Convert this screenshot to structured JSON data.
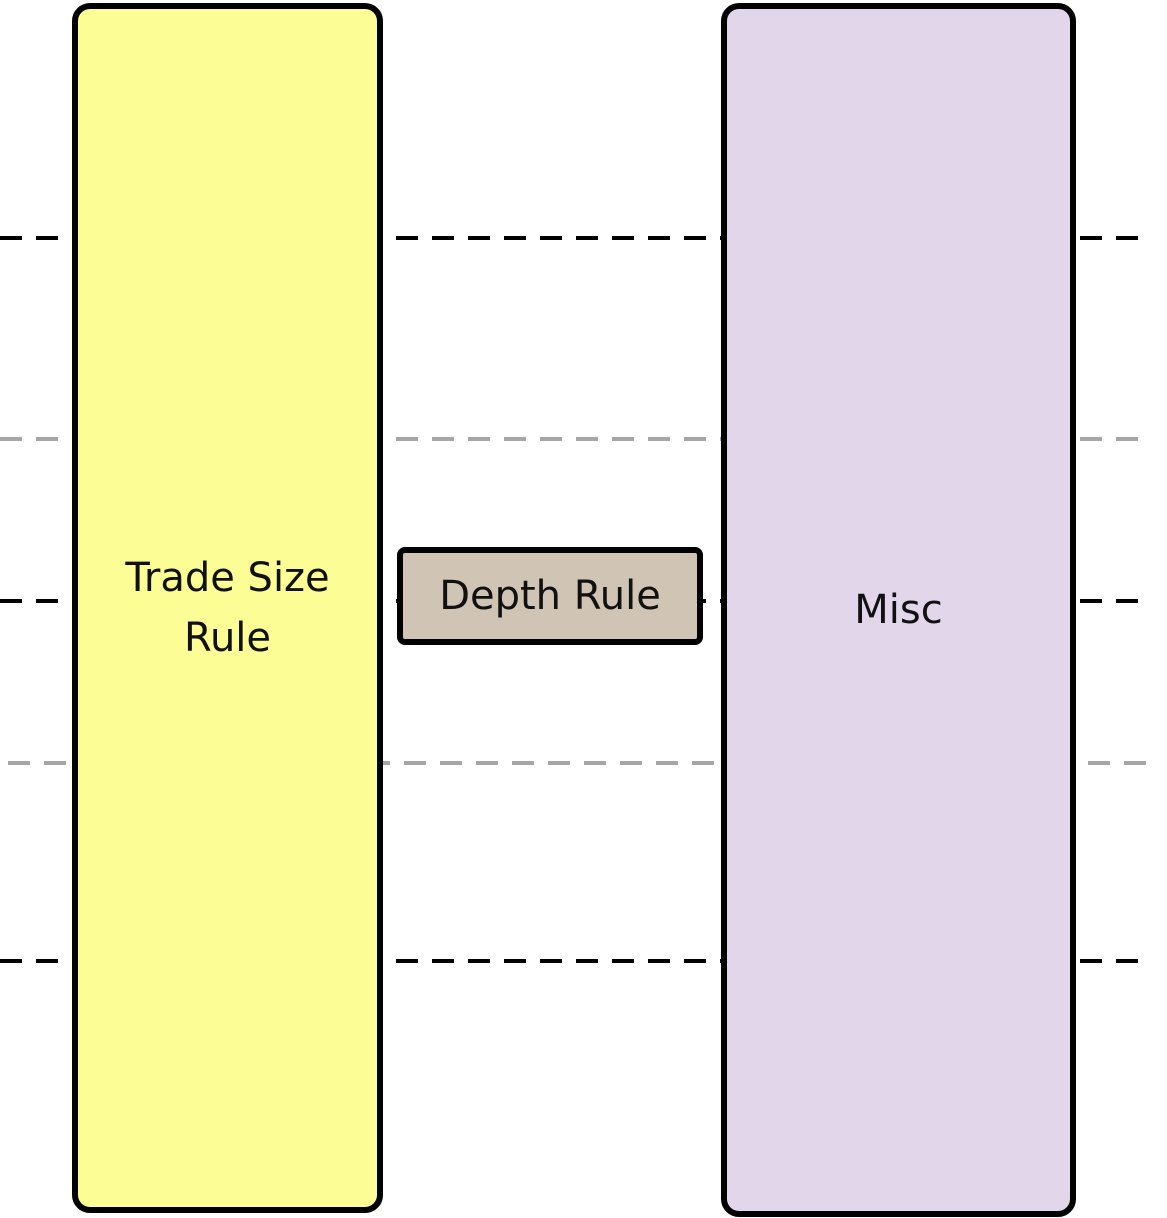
{
  "diagram": {
    "boxes": {
      "trade_size": {
        "label": "Trade Size\nRule",
        "fill": "#FDFD96"
      },
      "depth": {
        "label": "Depth Rule",
        "fill": "#D0C4B4"
      },
      "misc": {
        "label": "Misc",
        "fill": "#E2D6EA"
      }
    },
    "line_colors": {
      "major": "#000000",
      "minor": "#A6A6A6"
    }
  }
}
